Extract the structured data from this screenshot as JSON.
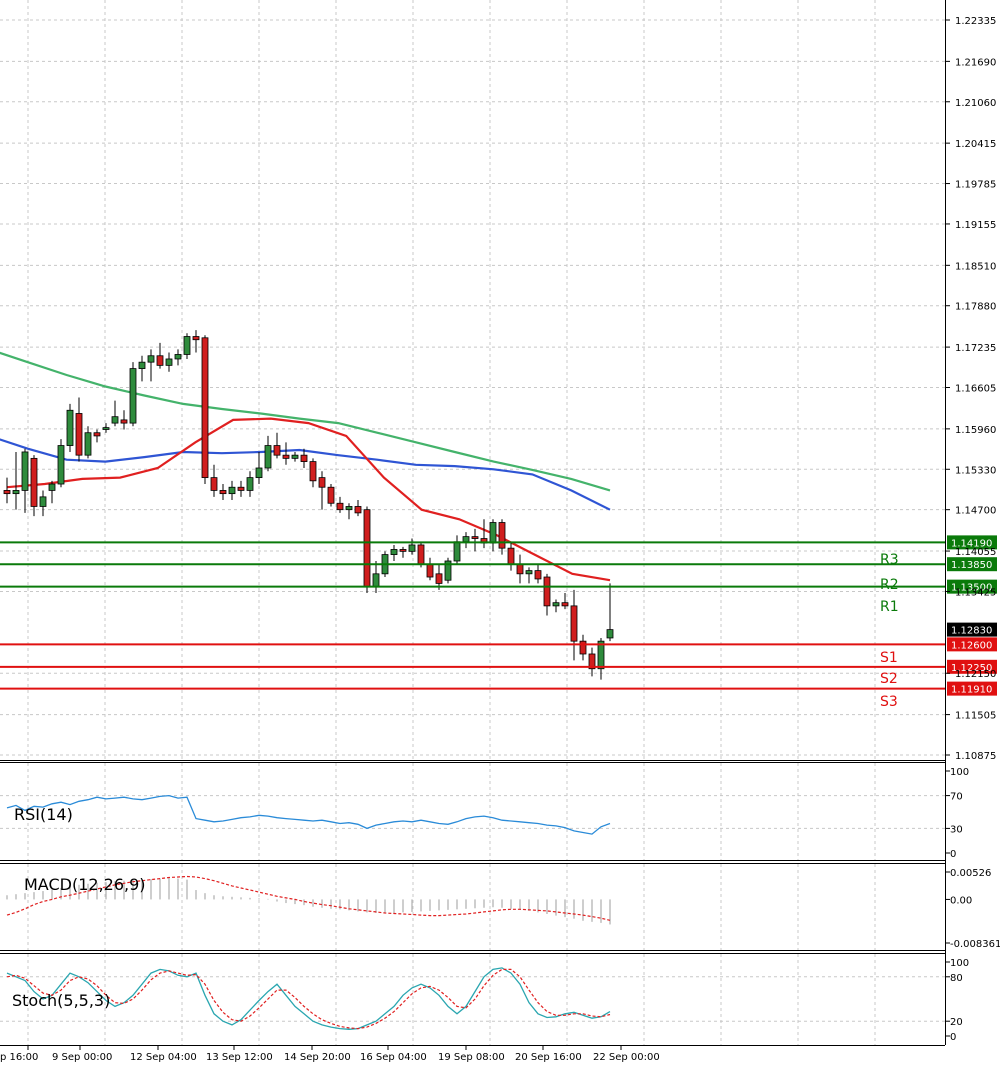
{
  "chart_data": [
    {
      "type": "candlestick",
      "panel": "price",
      "ylim": [
        1.10875,
        1.22335
      ],
      "y_ticks": [
        "1.22335",
        "1.21690",
        "1.21060",
        "1.20415",
        "1.19785",
        "1.19155",
        "1.18510",
        "1.17880",
        "1.17235",
        "1.16605",
        "1.15960",
        "1.15330",
        "1.14700",
        "1.14055",
        "1.13425",
        "1.12150",
        "1.11505",
        "1.10875"
      ],
      "grid": true,
      "x_tick_labels": [
        "p 16:00",
        "9 Sep 00:00",
        "12 Sep 04:00",
        "13 Sep 12:00",
        "14 Sep 20:00",
        "16 Sep 04:00",
        "19 Sep 08:00",
        "20 Sep 16:00",
        "22 Sep 00:00"
      ],
      "candles": [
        {
          "o": 1.15,
          "h": 1.152,
          "l": 1.148,
          "c": 1.1495
        },
        {
          "o": 1.1495,
          "h": 1.156,
          "l": 1.147,
          "c": 1.15
        },
        {
          "o": 1.15,
          "h": 1.1565,
          "l": 1.1465,
          "c": 1.156
        },
        {
          "o": 1.155,
          "h": 1.1555,
          "l": 1.146,
          "c": 1.1475
        },
        {
          "o": 1.1475,
          "h": 1.15,
          "l": 1.146,
          "c": 1.149
        },
        {
          "o": 1.15,
          "h": 1.1515,
          "l": 1.148,
          "c": 1.151
        },
        {
          "o": 1.151,
          "h": 1.158,
          "l": 1.1505,
          "c": 1.157
        },
        {
          "o": 1.157,
          "h": 1.1635,
          "l": 1.156,
          "c": 1.1625
        },
        {
          "o": 1.162,
          "h": 1.1645,
          "l": 1.1545,
          "c": 1.1555
        },
        {
          "o": 1.1555,
          "h": 1.16,
          "l": 1.155,
          "c": 1.159
        },
        {
          "o": 1.159,
          "h": 1.1595,
          "l": 1.1575,
          "c": 1.1585
        },
        {
          "o": 1.1595,
          "h": 1.1605,
          "l": 1.159,
          "c": 1.1598
        },
        {
          "o": 1.1605,
          "h": 1.164,
          "l": 1.16,
          "c": 1.1615
        },
        {
          "o": 1.161,
          "h": 1.1625,
          "l": 1.1595,
          "c": 1.1605
        },
        {
          "o": 1.1605,
          "h": 1.17,
          "l": 1.16,
          "c": 1.169
        },
        {
          "o": 1.169,
          "h": 1.171,
          "l": 1.167,
          "c": 1.17
        },
        {
          "o": 1.17,
          "h": 1.172,
          "l": 1.167,
          "c": 1.171
        },
        {
          "o": 1.171,
          "h": 1.173,
          "l": 1.169,
          "c": 1.1695
        },
        {
          "o": 1.1695,
          "h": 1.1715,
          "l": 1.1685,
          "c": 1.1705
        },
        {
          "o": 1.1705,
          "h": 1.172,
          "l": 1.1695,
          "c": 1.1712
        },
        {
          "o": 1.1712,
          "h": 1.1745,
          "l": 1.1705,
          "c": 1.174
        },
        {
          "o": 1.174,
          "h": 1.175,
          "l": 1.1715,
          "c": 1.1735
        },
        {
          "o": 1.1738,
          "h": 1.1742,
          "l": 1.151,
          "c": 1.152
        },
        {
          "o": 1.152,
          "h": 1.154,
          "l": 1.149,
          "c": 1.15
        },
        {
          "o": 1.15,
          "h": 1.151,
          "l": 1.1485,
          "c": 1.1495
        },
        {
          "o": 1.1495,
          "h": 1.1515,
          "l": 1.1485,
          "c": 1.1505
        },
        {
          "o": 1.1505,
          "h": 1.1515,
          "l": 1.149,
          "c": 1.15
        },
        {
          "o": 1.15,
          "h": 1.153,
          "l": 1.149,
          "c": 1.152
        },
        {
          "o": 1.152,
          "h": 1.156,
          "l": 1.151,
          "c": 1.1535
        },
        {
          "o": 1.1535,
          "h": 1.1585,
          "l": 1.153,
          "c": 1.157
        },
        {
          "o": 1.157,
          "h": 1.159,
          "l": 1.155,
          "c": 1.1555
        },
        {
          "o": 1.1555,
          "h": 1.1575,
          "l": 1.154,
          "c": 1.155
        },
        {
          "o": 1.155,
          "h": 1.156,
          "l": 1.1545,
          "c": 1.1555
        },
        {
          "o": 1.1555,
          "h": 1.1565,
          "l": 1.1535,
          "c": 1.1545
        },
        {
          "o": 1.1545,
          "h": 1.155,
          "l": 1.1505,
          "c": 1.1515
        },
        {
          "o": 1.152,
          "h": 1.153,
          "l": 1.147,
          "c": 1.1505
        },
        {
          "o": 1.1505,
          "h": 1.151,
          "l": 1.1475,
          "c": 1.148
        },
        {
          "o": 1.148,
          "h": 1.149,
          "l": 1.1465,
          "c": 1.147
        },
        {
          "o": 1.147,
          "h": 1.148,
          "l": 1.1455,
          "c": 1.1475
        },
        {
          "o": 1.1475,
          "h": 1.1485,
          "l": 1.146,
          "c": 1.1465
        },
        {
          "o": 1.147,
          "h": 1.1475,
          "l": 1.134,
          "c": 1.135
        },
        {
          "o": 1.135,
          "h": 1.139,
          "l": 1.134,
          "c": 1.137
        },
        {
          "o": 1.137,
          "h": 1.1405,
          "l": 1.1365,
          "c": 1.14
        },
        {
          "o": 1.14,
          "h": 1.1415,
          "l": 1.139,
          "c": 1.1408
        },
        {
          "o": 1.1408,
          "h": 1.1412,
          "l": 1.1395,
          "c": 1.1405
        },
        {
          "o": 1.1405,
          "h": 1.1425,
          "l": 1.14,
          "c": 1.1415
        },
        {
          "o": 1.1415,
          "h": 1.142,
          "l": 1.138,
          "c": 1.1385
        },
        {
          "o": 1.1385,
          "h": 1.1395,
          "l": 1.136,
          "c": 1.1365
        },
        {
          "o": 1.137,
          "h": 1.1385,
          "l": 1.1345,
          "c": 1.1355
        },
        {
          "o": 1.136,
          "h": 1.1395,
          "l": 1.1355,
          "c": 1.139
        },
        {
          "o": 1.139,
          "h": 1.143,
          "l": 1.1385,
          "c": 1.142
        },
        {
          "o": 1.142,
          "h": 1.1435,
          "l": 1.141,
          "c": 1.1428
        },
        {
          "o": 1.1428,
          "h": 1.144,
          "l": 1.1405,
          "c": 1.1425
        },
        {
          "o": 1.1425,
          "h": 1.1455,
          "l": 1.141,
          "c": 1.1418
        },
        {
          "o": 1.1418,
          "h": 1.1455,
          "l": 1.1405,
          "c": 1.145
        },
        {
          "o": 1.145,
          "h": 1.1455,
          "l": 1.14,
          "c": 1.141
        },
        {
          "o": 1.141,
          "h": 1.142,
          "l": 1.1375,
          "c": 1.1385
        },
        {
          "o": 1.1385,
          "h": 1.14,
          "l": 1.1355,
          "c": 1.137
        },
        {
          "o": 1.137,
          "h": 1.138,
          "l": 1.1355,
          "c": 1.1375
        },
        {
          "o": 1.1375,
          "h": 1.1385,
          "l": 1.1355,
          "c": 1.1362
        },
        {
          "o": 1.1365,
          "h": 1.137,
          "l": 1.1305,
          "c": 1.132
        },
        {
          "o": 1.132,
          "h": 1.133,
          "l": 1.131,
          "c": 1.1325
        },
        {
          "o": 1.1325,
          "h": 1.134,
          "l": 1.1315,
          "c": 1.132
        },
        {
          "o": 1.132,
          "h": 1.1345,
          "l": 1.1235,
          "c": 1.1265
        },
        {
          "o": 1.1265,
          "h": 1.1275,
          "l": 1.1235,
          "c": 1.1245
        },
        {
          "o": 1.1245,
          "h": 1.1255,
          "l": 1.121,
          "c": 1.1222
        },
        {
          "o": 1.1222,
          "h": 1.127,
          "l": 1.1205,
          "c": 1.1265
        },
        {
          "o": 1.127,
          "h": 1.1355,
          "l": 1.1265,
          "c": 1.1283
        }
      ],
      "moving_averages": [
        {
          "color": "#44b36b",
          "from_index": -2,
          "values": [
            1.172,
            1.17,
            1.168,
            1.1662,
            1.1648,
            1.1635,
            1.1627,
            1.162,
            1.1612,
            1.1605,
            1.159,
            1.1575,
            1.156,
            1.1545,
            1.1532,
            1.1518,
            1.15
          ]
        },
        {
          "color": "#2f55d4",
          "from_index": -2,
          "values": [
            1.1585,
            1.1565,
            1.1548,
            1.1545,
            1.1552,
            1.156,
            1.1558,
            1.156,
            1.1563,
            1.1555,
            1.1548,
            1.154,
            1.1538,
            1.1533,
            1.1525,
            1.15,
            1.147
          ]
        },
        {
          "color": "#e02020",
          "from_index": 0,
          "values": [
            1.1505,
            1.151,
            1.1518,
            1.152,
            1.1535,
            1.1575,
            1.161,
            1.1612,
            1.1605,
            1.1585,
            1.152,
            1.147,
            1.1455,
            1.143,
            1.14,
            1.137,
            1.136
          ]
        }
      ],
      "levels": [
        {
          "name": "R3",
          "value": 1.1419,
          "label": "1.14190",
          "color": "#0a7a0a"
        },
        {
          "name": "R2",
          "value": 1.1385,
          "label": "1.13850",
          "color": "#0a7a0a"
        },
        {
          "name": "R1",
          "value": 1.135,
          "label": "1.13500",
          "color": "#0a7a0a"
        },
        {
          "name": "S1",
          "value": 1.126,
          "label": "1.12600",
          "color": "#e01010"
        },
        {
          "name": "S2",
          "value": 1.1225,
          "label": "1.12250",
          "color": "#e01010"
        },
        {
          "name": "S3",
          "value": 1.1191,
          "label": "1.11910",
          "color": "#e01010"
        }
      ],
      "current_price": {
        "value": 1.1283,
        "label": "1.12830"
      },
      "bull_color": "#2e8b3c",
      "bear_color": "#d01e1e"
    },
    {
      "type": "line",
      "panel": "rsi",
      "title": "RSI(14)",
      "ylim": [
        0,
        100
      ],
      "y_ticks": [
        "100",
        "70",
        "30",
        "0"
      ],
      "color": "#2a8bd8",
      "values": [
        55,
        58,
        52,
        57,
        56,
        60,
        62,
        59,
        63,
        65,
        68,
        66,
        67,
        68,
        66,
        65,
        67,
        69,
        70,
        67,
        68,
        42,
        40,
        38,
        39,
        41,
        43,
        44,
        46,
        45,
        43,
        42,
        41,
        40,
        39,
        40,
        38,
        36,
        37,
        35,
        30,
        34,
        36,
        38,
        39,
        38,
        40,
        38,
        36,
        35,
        38,
        42,
        44,
        45,
        43,
        40,
        39,
        38,
        37,
        36,
        34,
        33,
        31,
        27,
        25,
        23,
        32,
        36
      ]
    },
    {
      "type": "bar+line",
      "panel": "macd",
      "title": "MACD(12,26,9)",
      "ylim": [
        -0.008361,
        0.00526
      ],
      "y_ticks": [
        "0.00526",
        "0.00",
        "-0.008361"
      ],
      "hist_color": "#b8b8b8",
      "signal_color": "#e02020",
      "histogram": [
        0.0008,
        0.001,
        0.0012,
        0.0014,
        0.0016,
        0.0019,
        0.0022,
        0.0026,
        0.0028,
        0.003,
        0.0032,
        0.0033,
        0.0035,
        0.0036,
        0.0037,
        0.0038,
        0.0039,
        0.004,
        0.0041,
        0.004,
        0.0038,
        0.0018,
        0.0012,
        0.0008,
        0.0006,
        0.0005,
        0.0004,
        0.0003,
        0.0002,
        0.0001,
        -0.0004,
        -0.0007,
        -0.0009,
        -0.0011,
        -0.0014,
        -0.0016,
        -0.0018,
        -0.0019,
        -0.0021,
        -0.0023,
        -0.0025,
        -0.0026,
        -0.0027,
        -0.0026,
        -0.0025,
        -0.0024,
        -0.0023,
        -0.0022,
        -0.0021,
        -0.002,
        -0.0019,
        -0.0018,
        -0.0017,
        -0.0016,
        -0.0015,
        -0.0016,
        -0.0018,
        -0.002,
        -0.0022,
        -0.0025,
        -0.0028,
        -0.0031,
        -0.0034,
        -0.0037,
        -0.0041,
        -0.0043,
        -0.0045,
        -0.0048
      ],
      "signal": [
        -0.003,
        -0.0025,
        -0.0018,
        -0.001,
        -0.0004,
        0.0,
        0.0005,
        0.0008,
        0.0012,
        0.0016,
        0.002,
        0.0024,
        0.0028,
        0.0031,
        0.0034,
        0.0036,
        0.0038,
        0.004,
        0.0042,
        0.0043,
        0.0044,
        0.0043,
        0.004,
        0.0036,
        0.0031,
        0.0026,
        0.0022,
        0.0018,
        0.0014,
        0.001,
        0.0006,
        0.0003,
        0.0,
        -0.0004,
        -0.0007,
        -0.001,
        -0.0012,
        -0.0015,
        -0.0018,
        -0.002,
        -0.0022,
        -0.0024,
        -0.0026,
        -0.0027,
        -0.0028,
        -0.0029,
        -0.003,
        -0.0031,
        -0.0031,
        -0.003,
        -0.0029,
        -0.0028,
        -0.0026,
        -0.0024,
        -0.0022,
        -0.002,
        -0.0019,
        -0.0019,
        -0.002,
        -0.0021,
        -0.0022,
        -0.0024,
        -0.0026,
        -0.0028,
        -0.003,
        -0.0033,
        -0.0036,
        -0.004
      ]
    },
    {
      "type": "line",
      "panel": "stoch",
      "title": "Stoch(5,5,3)",
      "ylim": [
        0,
        100
      ],
      "y_ticks": [
        "100",
        "80",
        "20",
        "0"
      ],
      "main_color": "#2aa6b0",
      "signal_color": "#e02020",
      "main": [
        85,
        80,
        75,
        60,
        50,
        55,
        70,
        85,
        80,
        72,
        60,
        48,
        40,
        45,
        55,
        70,
        85,
        90,
        88,
        82,
        80,
        85,
        55,
        30,
        20,
        15,
        22,
        35,
        48,
        60,
        70,
        55,
        40,
        30,
        20,
        15,
        12,
        10,
        9,
        10,
        15,
        20,
        30,
        40,
        55,
        65,
        70,
        65,
        55,
        40,
        30,
        40,
        60,
        80,
        90,
        92,
        85,
        70,
        45,
        30,
        25,
        26,
        30,
        32,
        28,
        24,
        26,
        33
      ],
      "signal": [
        80,
        82,
        78,
        68,
        58,
        55,
        62,
        75,
        80,
        77,
        68,
        55,
        45,
        44,
        50,
        62,
        76,
        85,
        88,
        85,
        82,
        83,
        70,
        48,
        32,
        22,
        20,
        27,
        38,
        50,
        62,
        62,
        52,
        40,
        30,
        22,
        17,
        13,
        11,
        10,
        12,
        17,
        24,
        33,
        45,
        57,
        65,
        67,
        62,
        52,
        40,
        38,
        50,
        68,
        82,
        90,
        90,
        80,
        62,
        45,
        33,
        28,
        28,
        30,
        30,
        27,
        26,
        29
      ]
    }
  ]
}
